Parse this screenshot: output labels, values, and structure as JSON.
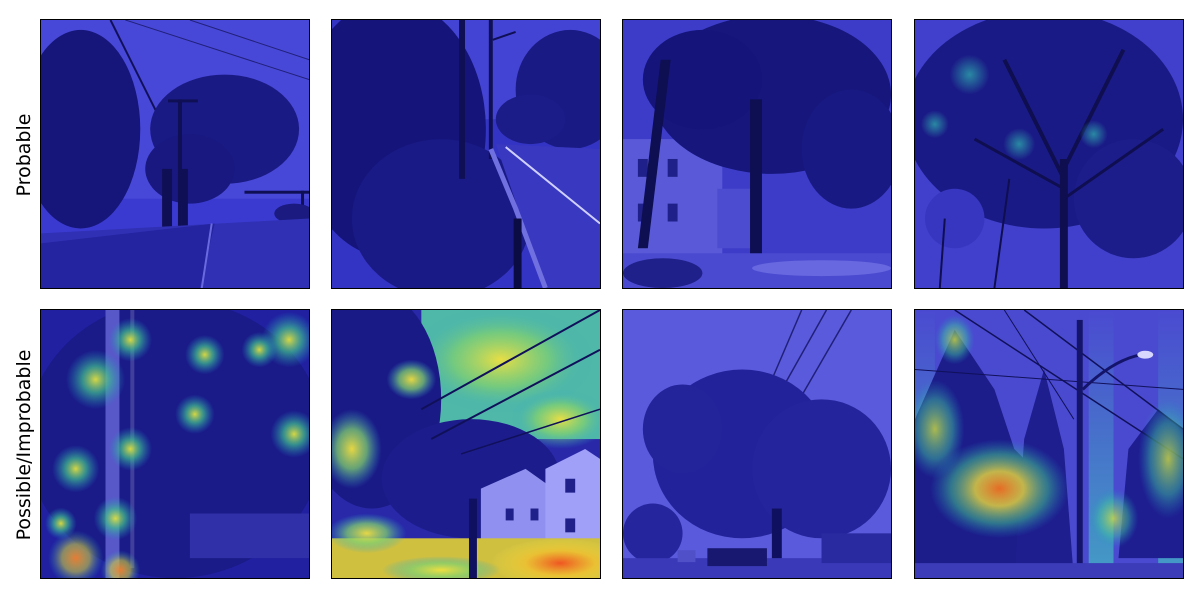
{
  "figure": {
    "rows": [
      {
        "label": "Probable",
        "images": [
          {
            "scene": "trees beside a road with power lines and traffic lights",
            "tint": "#2d2db0",
            "heat": "none"
          },
          {
            "scene": "dense roadside vegetation next to a guardrail and utility pole",
            "tint": "#2a2aa6",
            "heat": "none"
          },
          {
            "scene": "large tree in front of a white house",
            "tint": "#2a2aa8",
            "heat": "none"
          },
          {
            "scene": "tall deciduous tree canopy against the sky",
            "tint": "#2c2cae",
            "heat": "faint"
          }
        ]
      },
      {
        "label": "Possible/Improbable",
        "images": [
          {
            "scene": "dense leafy tree beside a utility pole",
            "tint": "#2626a0",
            "heat": "spots"
          },
          {
            "scene": "tree with power lines over white houses",
            "tint": "#2a2aa8",
            "heat": "strong"
          },
          {
            "scene": "trees below power lines on a residential street",
            "tint": "#3a3ac0",
            "heat": "none"
          },
          {
            "scene": "utility pole with street light among trees",
            "tint": "#2c2cae",
            "heat": "strong"
          }
        ]
      }
    ],
    "colors": {
      "overlay_base": "#1e1ea0",
      "heat_low": "#20b0c8",
      "heat_mid": "#60d080",
      "heat_high": "#f0e040",
      "heat_peak": "#f07020"
    }
  }
}
